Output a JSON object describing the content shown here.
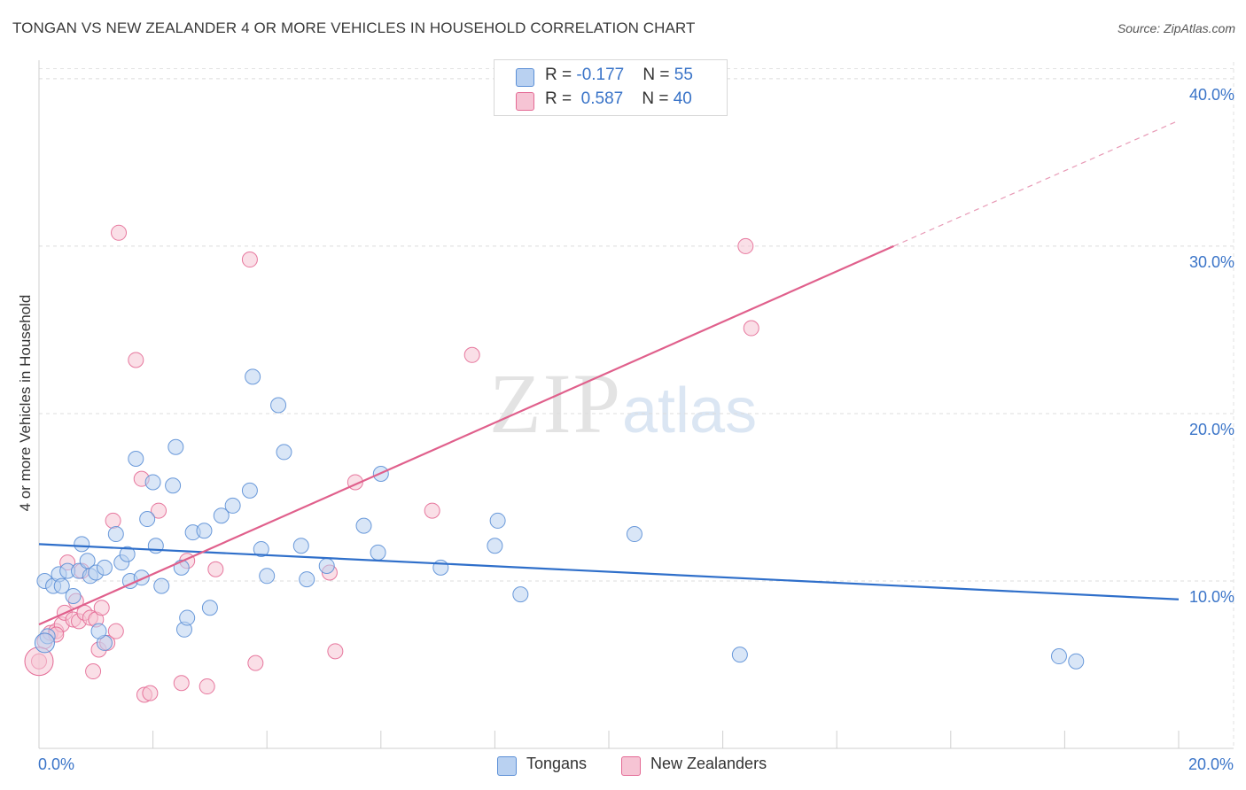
{
  "header": {
    "title": "TONGAN VS NEW ZEALANDER 4 OR MORE VEHICLES IN HOUSEHOLD CORRELATION CHART",
    "source": "Source: ZipAtlas.com"
  },
  "watermark": {
    "zip": "ZIP",
    "atlas": "atlas"
  },
  "legend_top": [
    {
      "r_label": "R = ",
      "r_value": "-0.177",
      "n_label": "N = ",
      "n_value": "55"
    },
    {
      "r_label": "R = ",
      "r_value": "0.587",
      "n_label": "N = ",
      "n_value": "40"
    }
  ],
  "chart_data": {
    "type": "scatter",
    "title": "TONGAN VS NEW ZEALANDER 4 OR MORE VEHICLES IN HOUSEHOLD CORRELATION CHART",
    "xlabel": "",
    "ylabel": "4 or more Vehicles in Household",
    "xlim": [
      0,
      20
    ],
    "ylim": [
      0,
      41
    ],
    "x_ticks": [
      {
        "v": 0,
        "label": "0.0%"
      },
      {
        "v": 20,
        "label": "20.0%"
      }
    ],
    "y_ticks": [
      {
        "v": 10,
        "label": "10.0%"
      },
      {
        "v": 20,
        "label": "20.0%"
      },
      {
        "v": 30,
        "label": "30.0%"
      },
      {
        "v": 40,
        "label": "40.0%"
      }
    ],
    "grid": true,
    "legend_position": "bottom",
    "colors": {
      "tongans": "#5b8fd6",
      "tongans_fill": "#b9d1f1",
      "nz": "#e46a95",
      "nz_fill": "#f6c4d4",
      "tick_label": "#3a74c8"
    },
    "series": [
      {
        "name": "Tongans",
        "r": -0.177,
        "n": 55,
        "trend": {
          "x0": 0,
          "y0": 12.2,
          "x1": 20,
          "y1": 8.9
        },
        "points": [
          [
            0.1,
            10.0
          ],
          [
            0.25,
            9.7
          ],
          [
            0.35,
            10.4
          ],
          [
            0.4,
            9.7
          ],
          [
            0.5,
            10.6
          ],
          [
            0.6,
            9.1
          ],
          [
            0.7,
            10.6
          ],
          [
            0.75,
            12.2
          ],
          [
            0.85,
            11.2
          ],
          [
            0.9,
            10.3
          ],
          [
            1.0,
            10.5
          ],
          [
            1.15,
            10.8
          ],
          [
            1.35,
            12.8
          ],
          [
            1.45,
            11.1
          ],
          [
            1.55,
            11.6
          ],
          [
            1.6,
            10.0
          ],
          [
            1.7,
            17.3
          ],
          [
            1.8,
            10.2
          ],
          [
            1.9,
            13.7
          ],
          [
            2.0,
            15.9
          ],
          [
            2.05,
            12.1
          ],
          [
            2.15,
            9.7
          ],
          [
            2.35,
            15.7
          ],
          [
            2.4,
            18.0
          ],
          [
            2.5,
            10.8
          ],
          [
            2.55,
            7.1
          ],
          [
            2.6,
            7.8
          ],
          [
            2.7,
            12.9
          ],
          [
            2.9,
            13.0
          ],
          [
            3.0,
            8.4
          ],
          [
            3.2,
            13.9
          ],
          [
            3.4,
            14.5
          ],
          [
            3.7,
            15.4
          ],
          [
            3.75,
            22.2
          ],
          [
            3.9,
            11.9
          ],
          [
            4.0,
            10.3
          ],
          [
            4.2,
            20.5
          ],
          [
            4.3,
            17.7
          ],
          [
            4.6,
            12.1
          ],
          [
            4.7,
            10.1
          ],
          [
            5.05,
            10.9
          ],
          [
            5.7,
            13.3
          ],
          [
            5.95,
            11.7
          ],
          [
            6.0,
            16.4
          ],
          [
            7.05,
            10.8
          ],
          [
            8.0,
            12.1
          ],
          [
            8.05,
            13.6
          ],
          [
            8.45,
            9.2
          ],
          [
            10.45,
            12.8
          ],
          [
            12.3,
            5.6
          ],
          [
            17.9,
            5.5
          ],
          [
            18.2,
            5.2
          ],
          [
            0.15,
            6.7
          ],
          [
            1.15,
            6.3
          ],
          [
            1.05,
            7.0
          ]
        ]
      },
      {
        "name": "New Zealanders",
        "r": 0.587,
        "n": 40,
        "trend": {
          "x0": 0,
          "y0": 7.4,
          "x1": 15.0,
          "y1": 30.0
        },
        "trend_dashed": {
          "x0": 15.0,
          "y0": 30.0,
          "x1": 20,
          "y1": 37.5
        },
        "points": [
          [
            0.0,
            5.2
          ],
          [
            0.1,
            6.4
          ],
          [
            0.2,
            6.9
          ],
          [
            0.3,
            7.0
          ],
          [
            0.4,
            7.4
          ],
          [
            0.45,
            8.1
          ],
          [
            0.5,
            11.1
          ],
          [
            0.6,
            7.7
          ],
          [
            0.65,
            8.8
          ],
          [
            0.7,
            7.6
          ],
          [
            0.75,
            10.6
          ],
          [
            0.8,
            8.1
          ],
          [
            0.9,
            7.8
          ],
          [
            0.95,
            4.6
          ],
          [
            1.0,
            7.7
          ],
          [
            1.05,
            5.9
          ],
          [
            1.1,
            8.4
          ],
          [
            1.2,
            6.3
          ],
          [
            1.3,
            13.6
          ],
          [
            1.35,
            7.0
          ],
          [
            1.4,
            30.8
          ],
          [
            1.7,
            23.2
          ],
          [
            1.8,
            16.1
          ],
          [
            1.85,
            3.2
          ],
          [
            1.95,
            3.3
          ],
          [
            2.1,
            14.2
          ],
          [
            2.5,
            3.9
          ],
          [
            2.6,
            11.2
          ],
          [
            2.95,
            3.7
          ],
          [
            3.1,
            10.7
          ],
          [
            3.7,
            29.2
          ],
          [
            3.8,
            5.1
          ],
          [
            5.1,
            10.5
          ],
          [
            5.2,
            5.8
          ],
          [
            5.55,
            15.9
          ],
          [
            6.9,
            14.2
          ],
          [
            7.6,
            23.5
          ],
          [
            12.4,
            30.0
          ],
          [
            12.5,
            25.1
          ],
          [
            0.3,
            6.8
          ]
        ]
      }
    ]
  }
}
